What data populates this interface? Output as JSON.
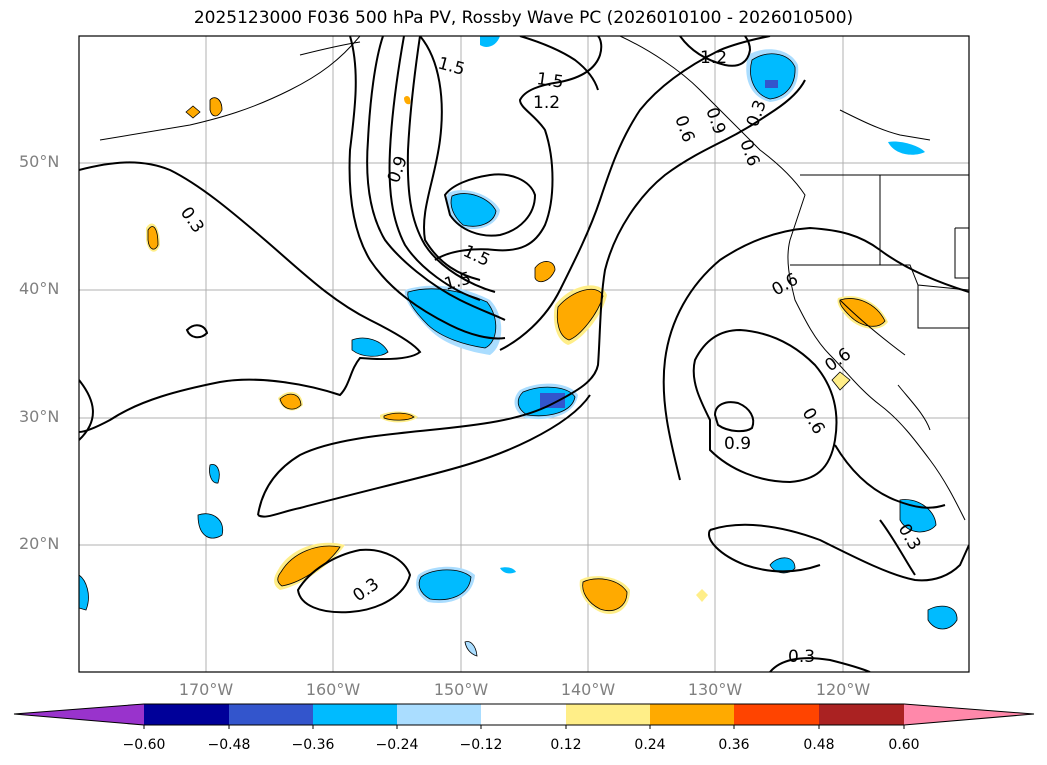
{
  "title": "2025123000 F036 500 hPa PV, Rossby Wave PC (2026010100 - 2026010500)",
  "map": {
    "lat_labels": [
      "50°N",
      "40°N",
      "30°N",
      "20°N"
    ],
    "lon_labels": [
      "170°W",
      "160°W",
      "150°W",
      "140°W",
      "130°W",
      "120°W"
    ],
    "contour_labels": [
      "1.2",
      "1.5",
      "1.5",
      "1.2",
      "0.9",
      "0.3",
      "1.5",
      "1.5",
      "0.3",
      "0.3",
      "0.6",
      "0.6",
      "0.6",
      "0.9",
      "0.3",
      "0.3",
      "0.9",
      "0.6",
      "0.6"
    ]
  },
  "colorbar": {
    "tick_labels": [
      "−0.60",
      "−0.48",
      "−0.36",
      "−0.24",
      "−0.12",
      "0.12",
      "0.24",
      "0.36",
      "0.48",
      "0.60"
    ],
    "colors": [
      "#9933cc",
      "#000099",
      "#3355cc",
      "#00bbff",
      "#aaddff",
      "#ffffff",
      "#ffee88",
      "#ffaa00",
      "#ff4400",
      "#aa2222",
      "#ff88aa"
    ]
  }
}
